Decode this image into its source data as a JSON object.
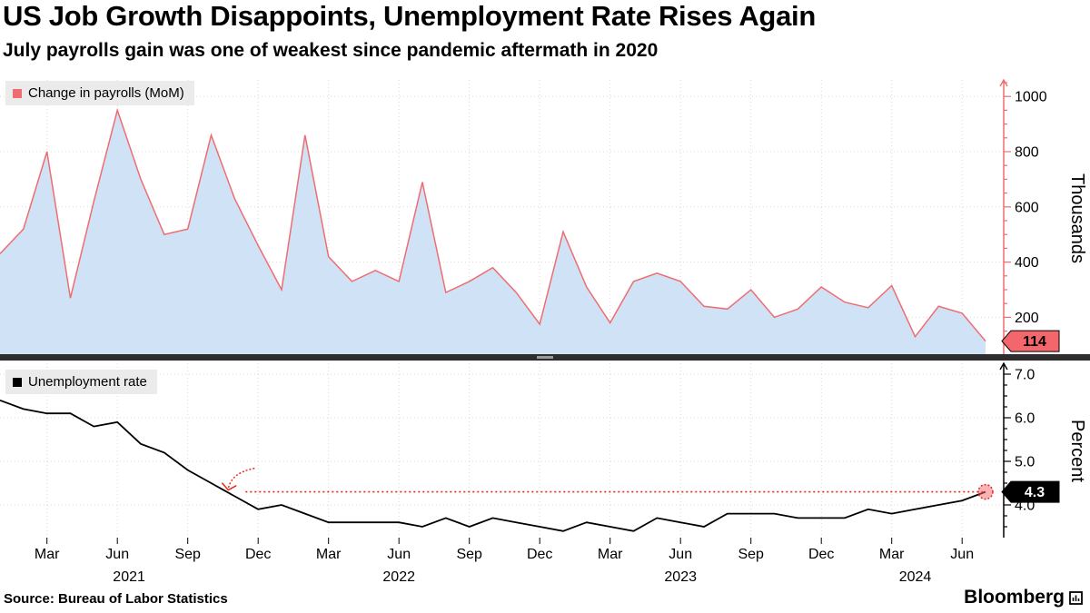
{
  "header": {
    "title": "US Job Growth Disappoints, Unemployment Rate Rises Again",
    "subtitle": "July payrolls gain was one of weakest since pandemic aftermath in 2020"
  },
  "source": "Source: Bureau of Labor Statistics",
  "brand": "Bloomberg",
  "colors": {
    "payrolls_line": "#ef6d71",
    "payrolls_fill": "#cfe2f6",
    "payrolls_badge_bg": "#f3676c",
    "unemployment_line": "#000000",
    "annotation_red": "#e02a1d",
    "grid": "#d9d9d9",
    "legend_bg": "#ebebeb",
    "axis_black": "#000000"
  },
  "x_axis": {
    "tick_labels": [
      "Mar",
      "Jun",
      "Sep",
      "Dec",
      "Mar",
      "Jun",
      "Sep",
      "Dec",
      "Mar",
      "Jun",
      "Sep",
      "Dec",
      "Mar",
      "Jun"
    ],
    "tick_month_indices": [
      2,
      5,
      8,
      11,
      14,
      17,
      20,
      23,
      26,
      29,
      32,
      35,
      38,
      41
    ],
    "year_labels": [
      "2021",
      "2022",
      "2023",
      "2024"
    ],
    "year_month_indices": [
      5.5,
      17,
      29,
      39
    ]
  },
  "chart_data": [
    {
      "type": "area",
      "title_legend": "Change in payrolls (MoM)",
      "unit_axis_label": "Thousands",
      "x_range": [
        "Jan 2021",
        "Jul 2024"
      ],
      "frequency": "monthly",
      "ylim": [
        60,
        1060
      ],
      "y_ticks": [
        200,
        400,
        600,
        800,
        1000
      ],
      "y_tick_labels": [
        "200",
        "400",
        "600",
        "800",
        "1000"
      ],
      "values": [
        430,
        520,
        800,
        270,
        620,
        950,
        700,
        500,
        520,
        860,
        630,
        460,
        300,
        860,
        420,
        330,
        370,
        330,
        690,
        290,
        330,
        380,
        290,
        175,
        510,
        310,
        180,
        330,
        360,
        330,
        240,
        230,
        300,
        200,
        230,
        310,
        255,
        235,
        315,
        130,
        240,
        215,
        114
      ],
      "last_value_label": "114"
    },
    {
      "type": "line",
      "title_legend": "Unemployment rate",
      "unit_axis_label": "Percent",
      "x_range": [
        "Jan 2021",
        "Jul 2024"
      ],
      "frequency": "monthly",
      "ylim": [
        3.25,
        7.25
      ],
      "y_ticks": [
        4,
        5,
        6,
        7
      ],
      "y_tick_labels": [
        "4.0",
        "5.0",
        "6.0",
        "7.0"
      ],
      "values": [
        6.4,
        6.2,
        6.1,
        6.1,
        5.8,
        5.9,
        5.4,
        5.2,
        4.8,
        4.5,
        4.2,
        3.9,
        4.0,
        3.8,
        3.6,
        3.6,
        3.6,
        3.6,
        3.5,
        3.7,
        3.5,
        3.7,
        3.6,
        3.5,
        3.4,
        3.6,
        3.5,
        3.4,
        3.7,
        3.6,
        3.5,
        3.8,
        3.8,
        3.8,
        3.7,
        3.7,
        3.7,
        3.9,
        3.8,
        3.9,
        4.0,
        4.1,
        4.3
      ],
      "last_value_label": "4.3",
      "annotation": {
        "type": "dotted-reference-line",
        "level": 4.3,
        "start_month_index": 10,
        "end_marker": "dashed-circle-highlight"
      }
    }
  ]
}
